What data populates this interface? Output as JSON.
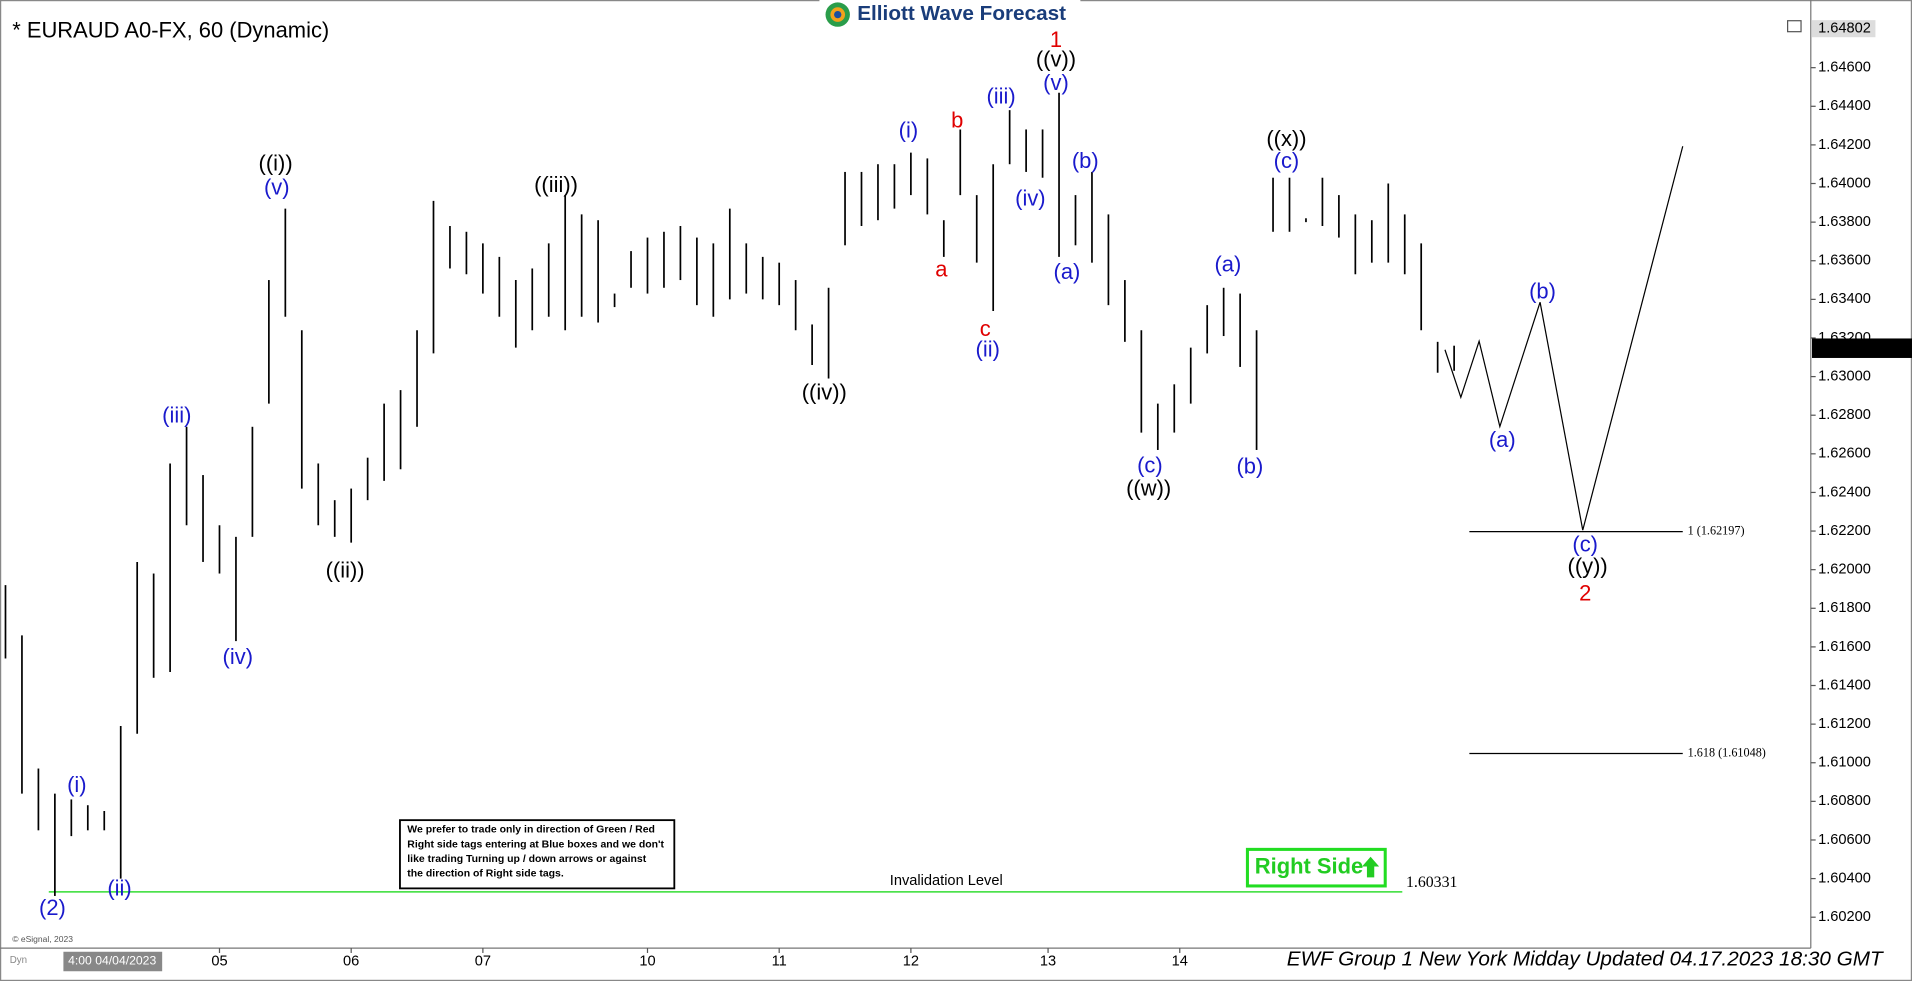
{
  "chart_data": {
    "type": "ohlc",
    "title": "* EURAUD A0-FX, 60 (Dynamic)",
    "logo": "Elliott Wave Forecast",
    "color": "#000000",
    "x": [
      1,
      4,
      7,
      10,
      13,
      16,
      19,
      22,
      25,
      28,
      31,
      34,
      37,
      40,
      43,
      46,
      49,
      52,
      55,
      58,
      61,
      64,
      67,
      70,
      73,
      76,
      79,
      82,
      85,
      88,
      91,
      94,
      97,
      100,
      103,
      106,
      109,
      112,
      115,
      118,
      121,
      124,
      127,
      130,
      133,
      136,
      139,
      142,
      145,
      148,
      151,
      154,
      157,
      160,
      163,
      166,
      169,
      172,
      175,
      178,
      181,
      184,
      187,
      190,
      193,
      196,
      199,
      202,
      205,
      208,
      211,
      214,
      217,
      220,
      223,
      226,
      229,
      232,
      235,
      238,
      241,
      244,
      247,
      250,
      253,
      256,
      259,
      262,
      265
    ],
    "high": [
      1.6192,
      1.6166,
      1.6097,
      1.6084,
      1.6081,
      1.6078,
      1.6075,
      1.6119,
      1.6204,
      1.6198,
      1.6255,
      1.6274,
      1.6249,
      1.6223,
      1.6217,
      1.6274,
      1.635,
      1.6387,
      1.6324,
      1.6255,
      1.6236,
      1.6242,
      1.6258,
      1.6286,
      1.6293,
      1.6324,
      1.6391,
      1.6378,
      1.6375,
      1.6369,
      1.6362,
      1.635,
      1.6356,
      1.6369,
      1.6394,
      1.6384,
      1.6381,
      1.6343,
      1.6365,
      1.6372,
      1.6375,
      1.6378,
      1.6372,
      1.6369,
      1.6387,
      1.6369,
      1.6362,
      1.6359,
      1.635,
      1.6327,
      1.6346,
      1.6406,
      1.6406,
      1.641,
      1.641,
      1.6416,
      1.6413,
      1.6381,
      1.6428,
      1.6394,
      1.641,
      1.6438,
      1.6428,
      1.6428,
      1.6447,
      1.6394,
      1.6406,
      1.6384,
      1.635,
      1.6324,
      1.6286,
      1.6296,
      1.6315,
      1.6337,
      1.6346,
      1.6343,
      1.6324,
      1.6403,
      1.6403,
      1.6382,
      1.6403,
      1.6394,
      1.6384,
      1.6381,
      1.64,
      1.6384,
      1.6369,
      1.6318,
      1.6316
    ],
    "low": [
      1.6154,
      1.6084,
      1.6065,
      1.6031,
      1.6062,
      1.6065,
      1.6065,
      1.604,
      1.6115,
      1.6144,
      1.6147,
      1.6223,
      1.6204,
      1.6198,
      1.6163,
      1.6217,
      1.6286,
      1.6331,
      1.6242,
      1.6223,
      1.6217,
      1.6214,
      1.6236,
      1.6246,
      1.6252,
      1.6274,
      1.6312,
      1.6356,
      1.6353,
      1.6343,
      1.6331,
      1.6315,
      1.6324,
      1.6331,
      1.6324,
      1.6331,
      1.6328,
      1.6336,
      1.6346,
      1.6343,
      1.6346,
      1.635,
      1.6337,
      1.6331,
      1.634,
      1.6343,
      1.634,
      1.6337,
      1.6324,
      1.6306,
      1.6299,
      1.6368,
      1.6378,
      1.6381,
      1.6387,
      1.6394,
      1.6384,
      1.6362,
      1.6394,
      1.6359,
      1.6334,
      1.641,
      1.6406,
      1.6403,
      1.6362,
      1.6368,
      1.6359,
      1.6337,
      1.6318,
      1.6271,
      1.6262,
      1.6271,
      1.6286,
      1.6312,
      1.6321,
      1.6305,
      1.6262,
      1.6375,
      1.6375,
      1.638,
      1.6378,
      1.6372,
      1.6353,
      1.6359,
      1.6359,
      1.6353,
      1.6324,
      1.6302,
      1.6303
    ],
    "xlim": [
      0,
      330
    ],
    "ylim": [
      1.6004,
      1.649
    ],
    "xticks": [
      {
        "value": 40,
        "label": "05"
      },
      {
        "value": 64,
        "label": "06"
      },
      {
        "value": 88,
        "label": "07"
      },
      {
        "value": 118,
        "label": "10"
      },
      {
        "value": 142,
        "label": "11"
      },
      {
        "value": 166,
        "label": "12"
      },
      {
        "value": 191,
        "label": "13"
      },
      {
        "value": 215,
        "label": "14"
      }
    ],
    "yticks": [
      {
        "value": 1.602,
        "label": "1.60200"
      },
      {
        "value": 1.604,
        "label": "1.60400"
      },
      {
        "value": 1.606,
        "label": "1.60600"
      },
      {
        "value": 1.608,
        "label": "1.60800"
      },
      {
        "value": 1.61,
        "label": "1.61000"
      },
      {
        "value": 1.612,
        "label": "1.61200"
      },
      {
        "value": 1.614,
        "label": "1.61400"
      },
      {
        "value": 1.616,
        "label": "1.61600"
      },
      {
        "value": 1.618,
        "label": "1.61800"
      },
      {
        "value": 1.62,
        "label": "1.62000"
      },
      {
        "value": 1.622,
        "label": "1.62200"
      },
      {
        "value": 1.624,
        "label": "1.62400"
      },
      {
        "value": 1.626,
        "label": "1.62600"
      },
      {
        "value": 1.628,
        "label": "1.62800"
      },
      {
        "value": 1.63,
        "label": "1.63000"
      },
      {
        "value": 1.632,
        "label": "1.63200"
      },
      {
        "value": 1.634,
        "label": "1.63400"
      },
      {
        "value": 1.636,
        "label": "1.63600"
      },
      {
        "value": 1.638,
        "label": "1.63800"
      },
      {
        "value": 1.64,
        "label": "1.64000"
      },
      {
        "value": 1.642,
        "label": "1.64200"
      },
      {
        "value": 1.644,
        "label": "1.64400"
      },
      {
        "value": 1.646,
        "label": "1.64600"
      }
    ],
    "range_high": 1.64802,
    "last_price": 1.63147,
    "levels": [
      {
        "value": 1.62197,
        "label": "1 (1.62197)"
      },
      {
        "value": 1.61048,
        "label": "1.618 (1.61048)"
      }
    ],
    "invalidation": {
      "value": 1.60331,
      "label": "1.60331",
      "title": "Invalidation Level"
    },
    "wave_labels": [
      {
        "text": "1",
        "color": "#e00000"
      },
      {
        "text": "((v))",
        "color": "#000000"
      },
      {
        "text": "(v)",
        "color": "#1a1acc"
      },
      {
        "text": "((i))",
        "color": "#000000"
      },
      {
        "text": "(v)",
        "color": "#1a1acc"
      },
      {
        "text": "((iii))",
        "color": "#000000"
      },
      {
        "text": "(iii)",
        "color": "#1a1acc"
      },
      {
        "text": "(iv)",
        "color": "#1a1acc"
      },
      {
        "text": "((ii))",
        "color": "#000000"
      },
      {
        "text": "(i)",
        "color": "#1a1acc"
      },
      {
        "text": "(ii)",
        "color": "#1a1acc"
      },
      {
        "text": "(2)",
        "color": "#1a1acc"
      },
      {
        "text": "((iv))",
        "color": "#000000"
      },
      {
        "text": "(i)",
        "color": "#1a1acc"
      },
      {
        "text": "b",
        "color": "#e00000"
      },
      {
        "text": "a",
        "color": "#e00000"
      },
      {
        "text": "c",
        "color": "#e00000"
      },
      {
        "text": "(ii)",
        "color": "#1a1acc"
      },
      {
        "text": "(iii)",
        "color": "#1a1acc"
      },
      {
        "text": "(iv)",
        "color": "#1a1acc"
      },
      {
        "text": "(b)",
        "color": "#1a1acc"
      },
      {
        "text": "(a)",
        "color": "#1a1acc"
      },
      {
        "text": "(c)",
        "color": "#1a1acc"
      },
      {
        "text": "((w))",
        "color": "#000000"
      },
      {
        "text": "(a)",
        "color": "#1a1acc"
      },
      {
        "text": "(b)",
        "color": "#1a1acc"
      },
      {
        "text": "((x))",
        "color": "#000000"
      },
      {
        "text": "(c)",
        "color": "#1a1acc"
      },
      {
        "text": "(b)",
        "color": "#1a1acc"
      },
      {
        "text": "(a)",
        "color": "#1a1acc"
      },
      {
        "text": "(c)",
        "color": "#1a1acc"
      },
      {
        "text": "((y))",
        "color": "#000000"
      },
      {
        "text": "2",
        "color": "#e00000"
      }
    ],
    "note": [
      "We prefer to trade only in direction of Green / Red",
      "Right side tags entering at Blue boxes and we don't",
      "like trading Turning up / down arrows or against",
      "the direction of Right side tags."
    ],
    "right_side": "Right Side",
    "cursor_label": "4:00 04/04/2023",
    "copyright": "© eSignal, 2023",
    "mode": "Dyn",
    "footer": "EWF Group 1 New York Midday Updated 04.17.2023 18:30 GMT"
  }
}
